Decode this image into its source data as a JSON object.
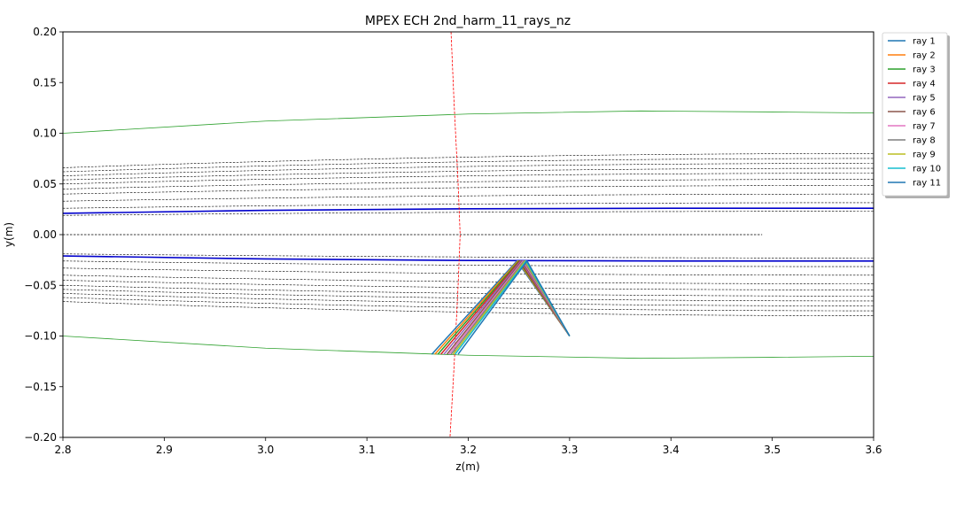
{
  "chart_data": {
    "type": "line",
    "title": "MPEX ECH  2nd_harm_11_rays_nz",
    "xlabel": "z(m)",
    "ylabel": "y(m)",
    "xlim": [
      2.8,
      3.6
    ],
    "ylim": [
      -0.2,
      0.2
    ],
    "xticks": [
      "2.8",
      "2.9",
      "3.0",
      "3.1",
      "3.2",
      "3.3",
      "3.4",
      "3.5",
      "3.6"
    ],
    "yticks": [
      "−0.20",
      "−0.15",
      "−0.10",
      "−0.05",
      "0.00",
      "0.05",
      "0.10",
      "0.15",
      "0.20"
    ],
    "grid": false,
    "legend_position": "outside-right-top",
    "colors": {
      "wall": "#2ca02c",
      "flux_surface": "#000000",
      "separatrix": "#0000cc",
      "resonance": "#ff0000"
    },
    "wall_top": {
      "x": [
        2.8,
        3.0,
        3.2,
        3.37,
        3.5,
        3.6
      ],
      "y": [
        0.1,
        0.112,
        0.119,
        0.122,
        0.121,
        0.12
      ]
    },
    "wall_bottom": {
      "x": [
        2.8,
        3.0,
        3.2,
        3.37,
        3.5,
        3.6
      ],
      "y": [
        -0.1,
        -0.112,
        -0.119,
        -0.122,
        -0.121,
        -0.12
      ]
    },
    "flux_levels_top": [
      0.066,
      0.062,
      0.058,
      0.054,
      0.05,
      0.045,
      0.04,
      0.033,
      0.026,
      0.019
    ],
    "flux_levels_bottom": [
      -0.019,
      -0.026,
      -0.033,
      -0.04,
      -0.045,
      -0.05,
      -0.054,
      -0.058,
      -0.062,
      -0.066
    ],
    "flux_growth": 0.014,
    "axis_line": {
      "x": [
        2.8,
        3.49
      ],
      "y": [
        0.0,
        0.0
      ]
    },
    "separatrix_top": {
      "x": [
        2.8,
        3.0,
        3.2,
        3.4,
        3.6
      ],
      "y": [
        0.021,
        0.024,
        0.0255,
        0.026,
        0.026
      ]
    },
    "separatrix_bottom": {
      "x": [
        2.8,
        3.0,
        3.2,
        3.4,
        3.6
      ],
      "y": [
        -0.021,
        -0.024,
        -0.0255,
        -0.026,
        -0.026
      ]
    },
    "resonance": {
      "x": [
        3.183,
        3.186,
        3.19,
        3.192,
        3.19,
        3.186,
        3.182
      ],
      "y": [
        0.2,
        0.13,
        0.05,
        0.0,
        -0.05,
        -0.13,
        -0.2
      ]
    },
    "series": [
      {
        "name": "ray 1",
        "color": "#1f77b4",
        "x": [
          3.3,
          3.248,
          3.164
        ],
        "y": [
          -0.1,
          -0.026,
          -0.118
        ]
      },
      {
        "name": "ray 2",
        "color": "#ff7f0e",
        "x": [
          3.3,
          3.249,
          3.167
        ],
        "y": [
          -0.1,
          -0.026,
          -0.118
        ]
      },
      {
        "name": "ray 3",
        "color": "#2ca02c",
        "x": [
          3.3,
          3.25,
          3.17
        ],
        "y": [
          -0.1,
          -0.026,
          -0.118
        ]
      },
      {
        "name": "ray 4",
        "color": "#d62728",
        "x": [
          3.3,
          3.251,
          3.173
        ],
        "y": [
          -0.1,
          -0.026,
          -0.118
        ]
      },
      {
        "name": "ray 5",
        "color": "#9467bd",
        "x": [
          3.3,
          3.252,
          3.176
        ],
        "y": [
          -0.1,
          -0.026,
          -0.118
        ]
      },
      {
        "name": "ray 6",
        "color": "#8c564b",
        "x": [
          3.3,
          3.253,
          3.179
        ],
        "y": [
          -0.1,
          -0.026,
          -0.118
        ]
      },
      {
        "name": "ray 7",
        "color": "#e377c2",
        "x": [
          3.3,
          3.254,
          3.181
        ],
        "y": [
          -0.1,
          -0.026,
          -0.118
        ]
      },
      {
        "name": "ray 8",
        "color": "#7f7f7f",
        "x": [
          3.3,
          3.255,
          3.183
        ],
        "y": [
          -0.1,
          -0.026,
          -0.118
        ]
      },
      {
        "name": "ray 9",
        "color": "#bcbd22",
        "x": [
          3.3,
          3.256,
          3.185
        ],
        "y": [
          -0.1,
          -0.026,
          -0.118
        ]
      },
      {
        "name": "ray 10",
        "color": "#17becf",
        "x": [
          3.3,
          3.257,
          3.187
        ],
        "y": [
          -0.1,
          -0.026,
          -0.118
        ]
      },
      {
        "name": "ray 11",
        "color": "#1f77b4",
        "x": [
          3.3,
          3.258,
          3.19
        ],
        "y": [
          -0.1,
          -0.026,
          -0.118
        ]
      }
    ]
  }
}
